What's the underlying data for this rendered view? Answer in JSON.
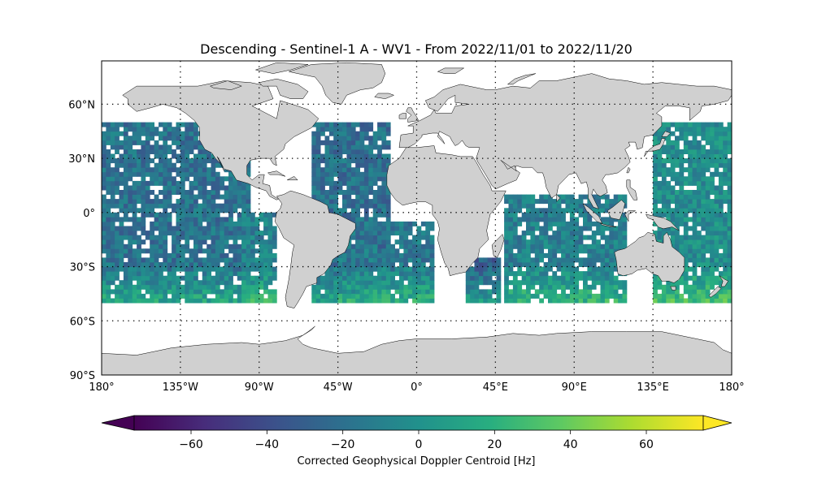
{
  "title": "Descending - Sentinel-1 A - WV1 - From 2022/11/01 to 2022/11/20",
  "map": {
    "projection": "PlateCarree",
    "lon_range": [
      -180,
      180
    ],
    "lat_range": [
      -90,
      84
    ],
    "land_color": "#d0d0d0",
    "coastline_color": "#000000",
    "gridline_style": "dotted",
    "lat_ticks": [
      {
        "value": 60,
        "label": "60°N"
      },
      {
        "value": 30,
        "label": "30°N"
      },
      {
        "value": 0,
        "label": "0°"
      },
      {
        "value": -30,
        "label": "30°S"
      },
      {
        "value": -60,
        "label": "60°S"
      },
      {
        "value": -90,
        "label": "90°S"
      }
    ],
    "lon_ticks": [
      {
        "value": -180,
        "label": "180°"
      },
      {
        "value": -135,
        "label": "135°W"
      },
      {
        "value": -90,
        "label": "90°W"
      },
      {
        "value": -45,
        "label": "45°W"
      },
      {
        "value": 0,
        "label": "0°"
      },
      {
        "value": 45,
        "label": "45°E"
      },
      {
        "value": 90,
        "label": "90°E"
      },
      {
        "value": 135,
        "label": "135°E"
      },
      {
        "value": 180,
        "label": "180°"
      }
    ]
  },
  "colorbar": {
    "label": "Corrected Geophysical Doppler Centroid [Hz]",
    "vmin": -75,
    "vmax": 75,
    "extend": "both",
    "colormap": "viridis",
    "ticks": [
      {
        "value": -60,
        "label": "−60"
      },
      {
        "value": -40,
        "label": "−40"
      },
      {
        "value": -20,
        "label": "−20"
      },
      {
        "value": 0,
        "label": "0"
      },
      {
        "value": 20,
        "label": "20"
      },
      {
        "value": 40,
        "label": "40"
      },
      {
        "value": 60,
        "label": "60"
      }
    ]
  },
  "data": {
    "lat_range_observed": [
      -50,
      50
    ],
    "swaths": [
      {
        "region": "Pacific (west of Americas)",
        "lon": [
          -180,
          -97
        ],
        "lat": [
          -50,
          50
        ],
        "base_hz": -18
      },
      {
        "region": "South-east Pacific",
        "lon": [
          -100,
          -80
        ],
        "lat": [
          -50,
          0
        ],
        "base_hz": -10
      },
      {
        "region": "Atlantic",
        "lon": [
          -60,
          -15
        ],
        "lat": [
          -50,
          50
        ],
        "base_hz": -20
      },
      {
        "region": "South Atlantic",
        "lon": [
          -45,
          8
        ],
        "lat": [
          -50,
          -5
        ],
        "base_hz": -14
      },
      {
        "region": "South-west Indian Ocean",
        "lon": [
          28,
          48
        ],
        "lat": [
          -50,
          -25
        ],
        "base_hz": -28
      },
      {
        "region": "Indian Ocean",
        "lon": [
          50,
          120
        ],
        "lat": [
          -50,
          10
        ],
        "base_hz": -10
      },
      {
        "region": "Western Pacific",
        "lon": [
          135,
          180
        ],
        "lat": [
          -50,
          50
        ],
        "base_hz": -2
      }
    ]
  }
}
